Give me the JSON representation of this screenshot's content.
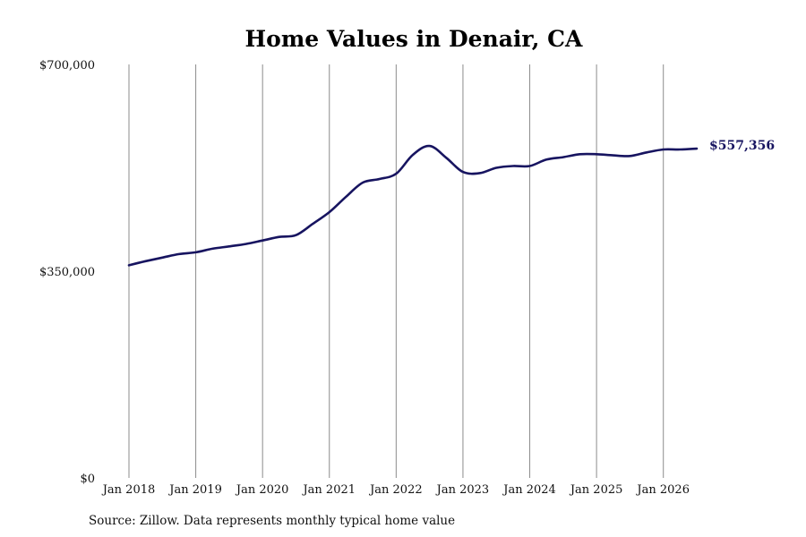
{
  "chart_data": {
    "type": "line",
    "title": "Home Values in Denair, CA",
    "xlabel": "",
    "ylabel": "",
    "ylim": [
      0,
      700000
    ],
    "y_ticks": [
      "$0",
      "$350,000",
      "$700,000"
    ],
    "x_ticks": [
      "Jan 2018",
      "Jan 2019",
      "Jan 2020",
      "Jan 2021",
      "Jan 2022",
      "Jan 2023",
      "Jan 2024",
      "Jan 2025",
      "Jan 2026"
    ],
    "grid": "vertical",
    "legend": "none",
    "color": "#171460",
    "end_label": "$557,356",
    "series": [
      {
        "x": [
          "2018-01",
          "2018-04",
          "2018-07",
          "2018-10",
          "2019-01",
          "2019-04",
          "2019-07",
          "2019-10",
          "2020-01",
          "2020-04",
          "2020-07",
          "2020-10",
          "2021-01",
          "2021-04",
          "2021-07",
          "2021-10",
          "2022-01",
          "2022-04",
          "2022-07",
          "2022-10",
          "2023-01",
          "2023-04",
          "2023-07",
          "2023-10",
          "2024-01",
          "2024-04",
          "2024-07",
          "2024-10",
          "2025-01",
          "2025-04",
          "2025-07",
          "2025-10",
          "2026-01",
          "2026-04",
          "2026-07"
        ],
        "values": [
          360000,
          367000,
          373000,
          379000,
          382000,
          388000,
          392000,
          396000,
          402000,
          408000,
          411000,
          430000,
          450000,
          476000,
          500000,
          506000,
          515000,
          547000,
          562000,
          542000,
          518000,
          516000,
          525000,
          528000,
          528000,
          539000,
          543000,
          548000,
          548000,
          546000,
          545000,
          551000,
          556000,
          556000,
          557356
        ]
      }
    ]
  },
  "source": "Source: Zillow. Data represents monthly typical home value"
}
